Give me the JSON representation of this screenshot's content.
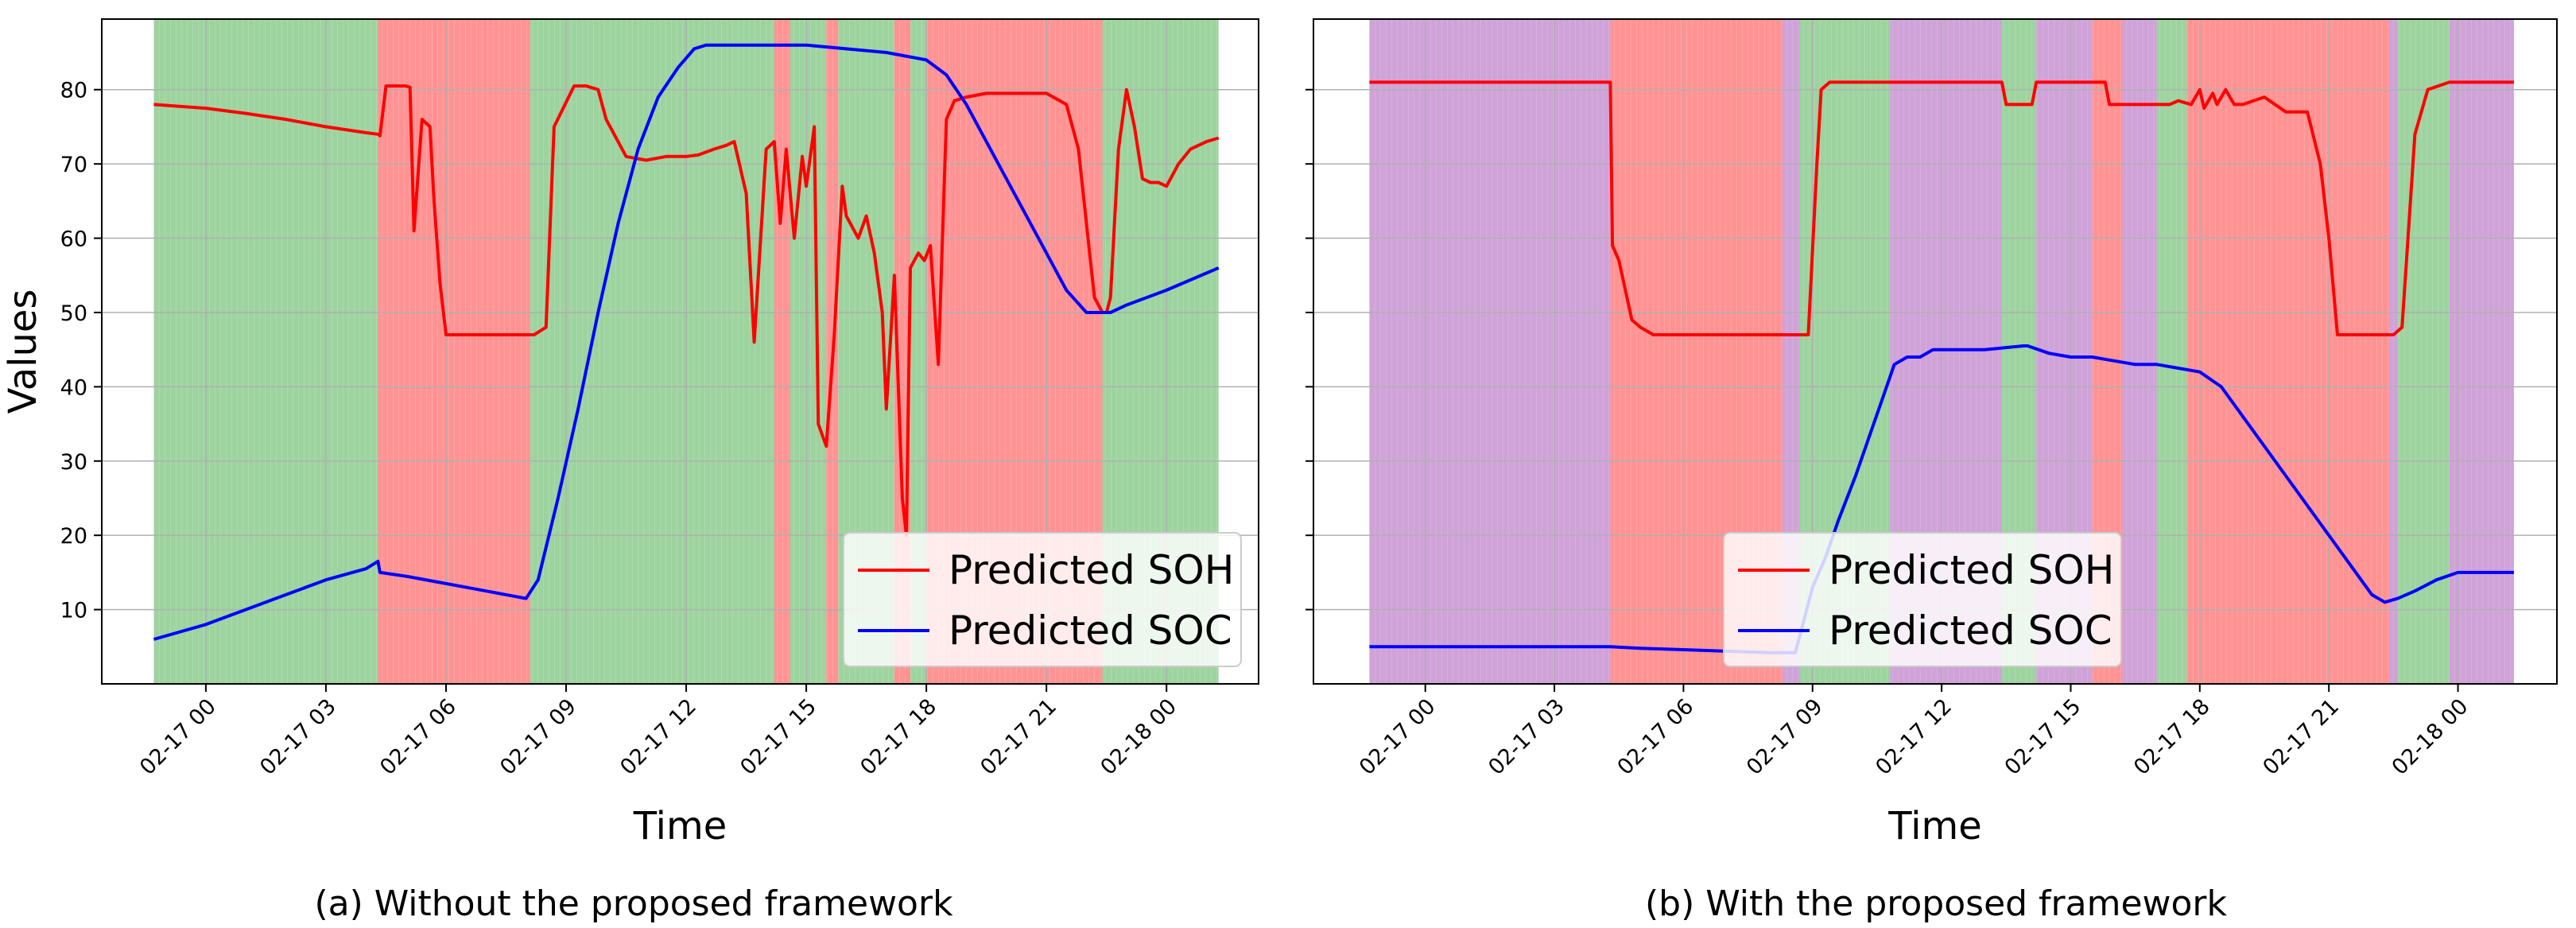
{
  "figure": {
    "captions": [
      "(a) Without the proposed framework",
      "(b) With the proposed framework"
    ]
  },
  "colors": {
    "soh_line": "#ff0000",
    "soc_line": "#0000ff",
    "band_green": "#4caf50",
    "band_red": "#ff3b3b",
    "band_purple": "#a855b8",
    "grid": "#b0b0b0"
  },
  "chart_data": [
    {
      "type": "line",
      "title": "",
      "caption": "(a) Without the proposed framework",
      "xlabel": "Time",
      "ylabel": "Values",
      "x_ticks": [
        "02-17 00",
        "02-17 03",
        "02-17 06",
        "02-17 09",
        "02-17 12",
        "02-17 15",
        "02-17 18",
        "02-17 21",
        "02-18 00"
      ],
      "x_tick_hours": [
        0,
        3,
        6,
        9,
        12,
        15,
        18,
        21,
        24
      ],
      "y_ticks": [
        10,
        20,
        30,
        40,
        50,
        60,
        70,
        80
      ],
      "xlim_hours": [
        -2.6,
        26.3
      ],
      "ylim": [
        0,
        89.5
      ],
      "grid": true,
      "legend_position": "lower-right",
      "background_bands": [
        {
          "start": -1.3,
          "end": 4.3,
          "state": "green"
        },
        {
          "start": 4.3,
          "end": 8.1,
          "state": "red"
        },
        {
          "start": 8.1,
          "end": 14.2,
          "state": "green"
        },
        {
          "start": 14.2,
          "end": 14.6,
          "state": "red"
        },
        {
          "start": 14.6,
          "end": 15.5,
          "state": "green"
        },
        {
          "start": 15.5,
          "end": 15.8,
          "state": "red"
        },
        {
          "start": 15.8,
          "end": 17.2,
          "state": "green"
        },
        {
          "start": 17.2,
          "end": 17.6,
          "state": "red"
        },
        {
          "start": 17.6,
          "end": 18.0,
          "state": "green"
        },
        {
          "start": 18.0,
          "end": 22.4,
          "state": "red"
        },
        {
          "start": 22.4,
          "end": 25.3,
          "state": "green"
        }
      ],
      "series": [
        {
          "name": "Predicted SOH",
          "color": "#ff0000",
          "x": [
            -1.3,
            0,
            1,
            2,
            3,
            4,
            4.3,
            4.35,
            4.5,
            5.0,
            5.1,
            5.2,
            5.4,
            5.6,
            5.7,
            5.85,
            6.0,
            6.2,
            7,
            7.6,
            8.0,
            8.2,
            8.5,
            8.7,
            9.2,
            9.3,
            9.5,
            9.8,
            10,
            10.5,
            11,
            11.5,
            12.0,
            12.3,
            12.7,
            13.0,
            13.2,
            13.5,
            13.7,
            14,
            14.2,
            14.35,
            14.5,
            14.7,
            14.9,
            15.0,
            15.2,
            15.3,
            15.5,
            15.7,
            15.9,
            16.0,
            16.3,
            16.5,
            16.7,
            16.9,
            17.0,
            17.2,
            17.4,
            17.5,
            17.6,
            17.8,
            17.95,
            18.1,
            18.3,
            18.5,
            18.7,
            19.0,
            19.5,
            20,
            20.5,
            21,
            21.5,
            21.8,
            22.1,
            22.2,
            22.4,
            22.5,
            22.6,
            22.8,
            23.0,
            23.2,
            23.4,
            23.6,
            23.8,
            24,
            24.3,
            24.6,
            25.0,
            25.3
          ],
          "y": [
            78,
            77.5,
            76.8,
            76,
            75,
            74.2,
            74,
            73.8,
            80.5,
            80.5,
            80.3,
            61,
            76,
            75,
            65,
            54,
            47,
            47,
            47,
            47,
            47,
            47,
            48,
            75,
            80.5,
            80.5,
            80.5,
            80,
            76,
            71,
            70.5,
            71,
            71,
            71.2,
            72,
            72.5,
            73,
            66,
            46,
            72,
            73,
            62,
            72,
            60,
            71,
            67,
            75,
            35,
            32,
            47,
            67,
            63,
            60,
            63,
            58,
            50,
            37,
            55,
            25,
            20,
            56,
            58,
            57,
            59,
            43,
            76,
            78.5,
            79,
            79.5,
            79.5,
            79.5,
            79.5,
            78,
            72,
            57,
            52,
            50,
            50,
            52,
            72,
            80,
            75,
            68,
            67.5,
            67.5,
            67,
            70,
            72,
            73,
            73.5
          ]
        },
        {
          "name": "Predicted SOC",
          "color": "#0000ff",
          "x": [
            -1.3,
            0,
            1,
            2,
            3,
            4,
            4.3,
            4.35,
            5,
            6,
            7,
            8.0,
            8.3,
            8.8,
            9.3,
            9.8,
            10.3,
            10.8,
            11.3,
            11.8,
            12.2,
            12.5,
            13.0,
            14,
            15,
            16,
            17,
            18,
            18.5,
            19,
            19.5,
            20,
            20.5,
            21,
            21.5,
            22,
            22.4,
            22.6,
            23,
            24,
            25.3
          ],
          "y": [
            6,
            8,
            10,
            12,
            14,
            15.5,
            16.5,
            15,
            14.5,
            13.5,
            12.5,
            11.5,
            14,
            25,
            37,
            50,
            62,
            72,
            79,
            83,
            85.5,
            86,
            86,
            86,
            86,
            85.5,
            85,
            84,
            82,
            78,
            73,
            68,
            63,
            58,
            53,
            50,
            50,
            50,
            51,
            53,
            56
          ]
        }
      ]
    },
    {
      "type": "line",
      "title": "",
      "caption": "(b) With the proposed framework",
      "xlabel": "Time",
      "ylabel": "",
      "x_ticks": [
        "02-17 00",
        "02-17 03",
        "02-17 06",
        "02-17 09",
        "02-17 12",
        "02-17 15",
        "02-17 18",
        "02-17 21",
        "02-18 00"
      ],
      "x_tick_hours": [
        0,
        3,
        6,
        9,
        12,
        15,
        18,
        21,
        24
      ],
      "y_ticks": [
        10,
        20,
        30,
        40,
        50,
        60,
        70,
        80
      ],
      "xlim_hours": [
        -2.6,
        26.3
      ],
      "ylim": [
        0,
        89.5
      ],
      "grid": true,
      "legend_position": "lower-center",
      "background_bands": [
        {
          "start": -1.3,
          "end": 4.3,
          "state": "purple"
        },
        {
          "start": 4.3,
          "end": 8.3,
          "state": "red"
        },
        {
          "start": 8.3,
          "end": 8.7,
          "state": "purple"
        },
        {
          "start": 8.7,
          "end": 10.8,
          "state": "green"
        },
        {
          "start": 10.8,
          "end": 13.4,
          "state": "purple"
        },
        {
          "start": 13.4,
          "end": 14.2,
          "state": "green"
        },
        {
          "start": 14.2,
          "end": 15.5,
          "state": "purple"
        },
        {
          "start": 15.5,
          "end": 16.2,
          "state": "red"
        },
        {
          "start": 16.2,
          "end": 17.0,
          "state": "purple"
        },
        {
          "start": 17.0,
          "end": 17.7,
          "state": "green"
        },
        {
          "start": 17.7,
          "end": 22.4,
          "state": "red"
        },
        {
          "start": 22.4,
          "end": 22.6,
          "state": "purple"
        },
        {
          "start": 22.6,
          "end": 23.8,
          "state": "green"
        },
        {
          "start": 23.8,
          "end": 25.3,
          "state": "purple"
        }
      ],
      "series": [
        {
          "name": "Predicted SOH",
          "color": "#ff0000",
          "x": [
            -1.3,
            0,
            2,
            4.3,
            4.35,
            4.5,
            4.8,
            5.0,
            5.3,
            6,
            7,
            8,
            8.9,
            9.1,
            9.2,
            9.4,
            10,
            11,
            12,
            13,
            13.4,
            13.5,
            14.1,
            14.2,
            15.0,
            15.8,
            15.9,
            16.0,
            16.5,
            17,
            17.3,
            17.5,
            17.8,
            18.0,
            18.1,
            18.3,
            18.4,
            18.6,
            18.8,
            19,
            19.5,
            20,
            20.5,
            20.8,
            21.0,
            21.2,
            22,
            22.4,
            22.5,
            22.7,
            23.0,
            23.3,
            23.8,
            25.3
          ],
          "y": [
            81,
            81,
            81,
            81,
            59,
            57,
            49,
            48,
            47,
            47,
            47,
            47,
            47,
            70,
            80,
            81,
            81,
            81,
            81,
            81,
            81,
            78,
            78,
            81,
            81,
            81,
            78,
            78,
            78,
            78,
            78,
            78.5,
            78,
            80,
            77.5,
            79.5,
            78,
            80,
            78,
            78,
            79,
            77,
            77,
            70,
            60,
            47,
            47,
            47,
            47,
            48,
            74,
            80,
            81,
            81
          ]
        },
        {
          "name": "Predicted SOC",
          "color": "#0000ff",
          "x": [
            -1.3,
            0,
            2,
            4.3,
            5,
            6,
            7,
            8,
            8.6,
            9.0,
            9.3,
            9.6,
            10.0,
            10.3,
            10.6,
            10.9,
            11.2,
            11.5,
            11.8,
            12.0,
            13.0,
            13.9,
            14.0,
            14.5,
            15.0,
            15.5,
            16.0,
            16.5,
            17.0,
            17.5,
            18.0,
            18.5,
            19.0,
            20.0,
            21.0,
            22.0,
            22.3,
            22.6,
            23.0,
            23.5,
            24.0,
            25.3
          ],
          "y": [
            5,
            5,
            5,
            5,
            4.8,
            4.6,
            4.4,
            4.2,
            4.2,
            13,
            17,
            22,
            28,
            33,
            38,
            43,
            44,
            44,
            45,
            45,
            45,
            45.5,
            45.5,
            44.5,
            44,
            44,
            43.5,
            43,
            43,
            42.5,
            42,
            40,
            36,
            28,
            20,
            12,
            11,
            11.5,
            12.5,
            14,
            15,
            15
          ]
        }
      ]
    }
  ]
}
